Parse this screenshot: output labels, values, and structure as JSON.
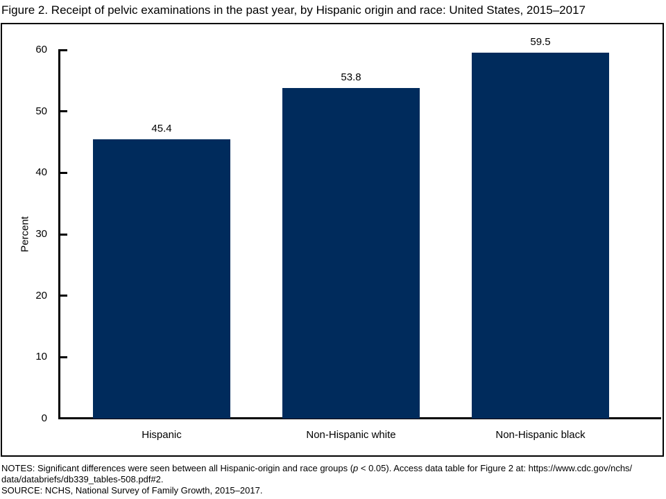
{
  "title": "Figure 2. Receipt of pelvic examinations in the past year, by Hispanic origin and race: United States, 2015–2017",
  "chart_data": {
    "type": "bar",
    "title": "Figure 2. Receipt of pelvic examinations in the past year, by Hispanic origin and race: United States, 2015–2017",
    "categories": [
      "Hispanic",
      "Non-Hispanic white",
      "Non-Hispanic black"
    ],
    "values": [
      45.4,
      53.8,
      59.5
    ],
    "value_labels": [
      "45.4",
      "53.8",
      "59.5"
    ],
    "xlabel": "",
    "ylabel": "Percent",
    "ylim": [
      0,
      60
    ],
    "yticks": [
      0,
      10,
      20,
      30,
      40,
      50,
      60
    ],
    "grid": false,
    "legend": "none",
    "bar_color": "#002b5c",
    "axis_color": "#000000",
    "background_color": "#ffffff"
  },
  "notes": {
    "line1_pre": "NOTES: Significant differences were seen between all Hispanic-origin and race groups (",
    "line1_italic": "p",
    "line1_post": " < 0.05). Access data table for Figure 2 at: https://www.cdc.gov/nchs/",
    "line2": "data/databriefs/db339_tables-508.pdf#2.",
    "line3": "SOURCE: NCHS, National Survey of Family Growth, 2015–2017."
  }
}
